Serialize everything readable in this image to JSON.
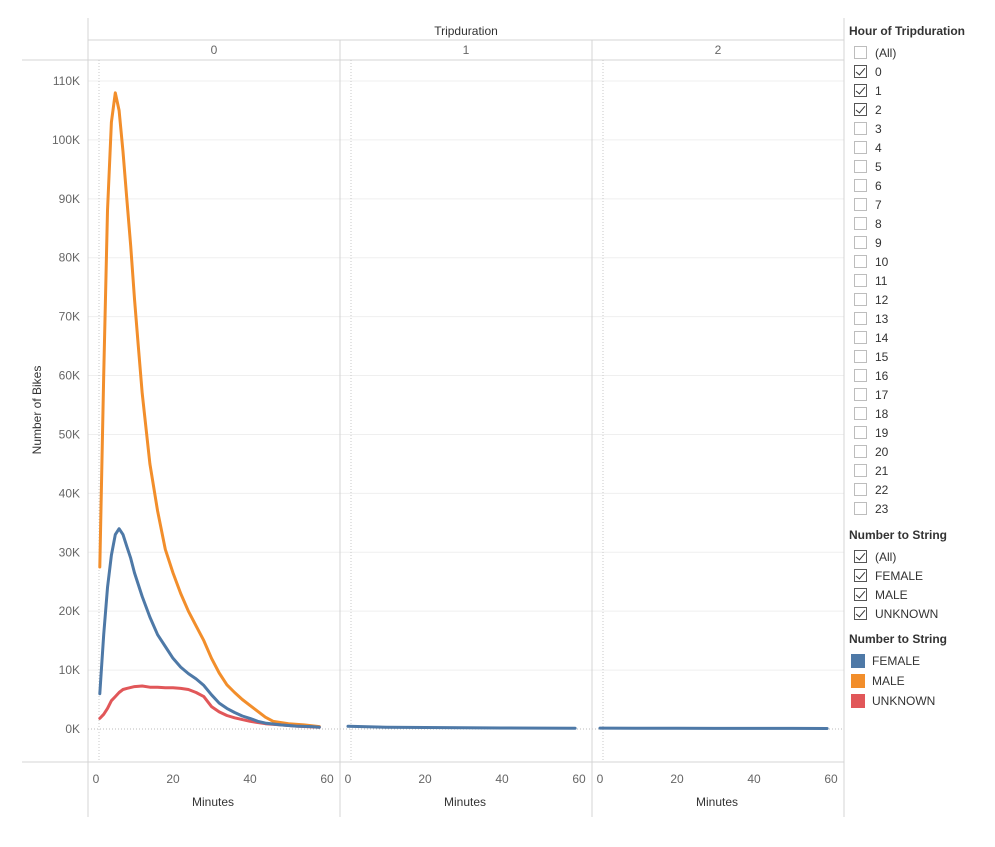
{
  "chart_data": {
    "type": "line",
    "title": "Tripduration",
    "ylabel": "Number of Bikes",
    "xlabel": "Minutes",
    "ylim": [
      0,
      110000
    ],
    "y_ticks": [
      0,
      10000,
      20000,
      30000,
      40000,
      50000,
      60000,
      70000,
      80000,
      90000,
      100000,
      110000
    ],
    "y_tick_labels": [
      "0K",
      "10K",
      "20K",
      "30K",
      "40K",
      "50K",
      "60K",
      "70K",
      "80K",
      "90K",
      "100K",
      "110K"
    ],
    "xlim": [
      0,
      60
    ],
    "x_ticks": [
      0,
      20,
      40,
      60
    ],
    "x_tick_labels": [
      "0",
      "20",
      "40",
      "60"
    ],
    "grid": true,
    "panels": [
      {
        "header": "0",
        "series": [
          {
            "name": "MALE",
            "color": "#f28e2b",
            "points": [
              [
                1,
                27500
              ],
              [
                2,
                60000
              ],
              [
                3,
                88000
              ],
              [
                4,
                103000
              ],
              [
                5,
                108000
              ],
              [
                6,
                105000
              ],
              [
                7,
                98000
              ],
              [
                8,
                90000
              ],
              [
                9,
                82000
              ],
              [
                10,
                73000
              ],
              [
                11,
                65000
              ],
              [
                12,
                57000
              ],
              [
                14,
                45000
              ],
              [
                16,
                37000
              ],
              [
                18,
                30500
              ],
              [
                20,
                26500
              ],
              [
                22,
                23000
              ],
              [
                24,
                20000
              ],
              [
                26,
                17500
              ],
              [
                28,
                15000
              ],
              [
                30,
                12000
              ],
              [
                32,
                9500
              ],
              [
                34,
                7500
              ],
              [
                36,
                6200
              ],
              [
                38,
                5000
              ],
              [
                40,
                4000
              ],
              [
                42,
                3000
              ],
              [
                44,
                2000
              ],
              [
                46,
                1300
              ],
              [
                50,
                900
              ],
              [
                54,
                700
              ],
              [
                58,
                400
              ]
            ]
          },
          {
            "name": "FEMALE",
            "color": "#4e79a7",
            "points": [
              [
                1,
                6000
              ],
              [
                2,
                16000
              ],
              [
                3,
                24000
              ],
              [
                4,
                29500
              ],
              [
                5,
                33000
              ],
              [
                6,
                34000
              ],
              [
                7,
                33000
              ],
              [
                8,
                31000
              ],
              [
                9,
                29000
              ],
              [
                10,
                26500
              ],
              [
                12,
                22500
              ],
              [
                14,
                19000
              ],
              [
                16,
                16000
              ],
              [
                18,
                14000
              ],
              [
                20,
                12000
              ],
              [
                22,
                10500
              ],
              [
                24,
                9400
              ],
              [
                26,
                8500
              ],
              [
                28,
                7400
              ],
              [
                30,
                5800
              ],
              [
                32,
                4400
              ],
              [
                34,
                3500
              ],
              [
                36,
                2800
              ],
              [
                38,
                2200
              ],
              [
                40,
                1800
              ],
              [
                42,
                1300
              ],
              [
                44,
                1000
              ],
              [
                48,
                700
              ],
              [
                52,
                500
              ],
              [
                56,
                400
              ],
              [
                58,
                300
              ]
            ]
          },
          {
            "name": "UNKNOWN",
            "color": "#e15759",
            "points": [
              [
                1,
                1800
              ],
              [
                2,
                2500
              ],
              [
                3,
                3500
              ],
              [
                4,
                4800
              ],
              [
                5,
                5500
              ],
              [
                6,
                6200
              ],
              [
                7,
                6700
              ],
              [
                8,
                6900
              ],
              [
                10,
                7200
              ],
              [
                12,
                7300
              ],
              [
                14,
                7100
              ],
              [
                16,
                7100
              ],
              [
                18,
                7000
              ],
              [
                20,
                7000
              ],
              [
                22,
                6900
              ],
              [
                24,
                6700
              ],
              [
                26,
                6200
              ],
              [
                28,
                5500
              ],
              [
                30,
                3800
              ],
              [
                32,
                2900
              ],
              [
                34,
                2300
              ],
              [
                36,
                1900
              ],
              [
                38,
                1600
              ],
              [
                40,
                1300
              ],
              [
                44,
                900
              ],
              [
                48,
                700
              ],
              [
                52,
                500
              ],
              [
                58,
                300
              ]
            ]
          }
        ]
      },
      {
        "header": "1",
        "series": [
          {
            "name": "FEMALE",
            "color": "#4e79a7",
            "points": [
              [
                0,
                450
              ],
              [
                10,
                300
              ],
              [
                20,
                250
              ],
              [
                30,
                200
              ],
              [
                40,
                170
              ],
              [
                50,
                150
              ],
              [
                59,
                120
              ]
            ]
          }
        ]
      },
      {
        "header": "2",
        "series": [
          {
            "name": "FEMALE",
            "color": "#4e79a7",
            "points": [
              [
                0,
                150
              ],
              [
                10,
                130
              ],
              [
                20,
                120
              ],
              [
                30,
                110
              ],
              [
                40,
                100
              ],
              [
                50,
                100
              ],
              [
                59,
                90
              ]
            ]
          }
        ]
      }
    ]
  },
  "filters": {
    "hour": {
      "title": "Hour of Tripduration",
      "items": [
        {
          "label": "(All)",
          "checked": false
        },
        {
          "label": "0",
          "checked": true
        },
        {
          "label": "1",
          "checked": true
        },
        {
          "label": "2",
          "checked": true
        },
        {
          "label": "3",
          "checked": false
        },
        {
          "label": "4",
          "checked": false
        },
        {
          "label": "5",
          "checked": false
        },
        {
          "label": "6",
          "checked": false
        },
        {
          "label": "7",
          "checked": false
        },
        {
          "label": "8",
          "checked": false
        },
        {
          "label": "9",
          "checked": false
        },
        {
          "label": "10",
          "checked": false
        },
        {
          "label": "11",
          "checked": false
        },
        {
          "label": "12",
          "checked": false
        },
        {
          "label": "13",
          "checked": false
        },
        {
          "label": "14",
          "checked": false
        },
        {
          "label": "15",
          "checked": false
        },
        {
          "label": "16",
          "checked": false
        },
        {
          "label": "17",
          "checked": false
        },
        {
          "label": "18",
          "checked": false
        },
        {
          "label": "19",
          "checked": false
        },
        {
          "label": "20",
          "checked": false
        },
        {
          "label": "21",
          "checked": false
        },
        {
          "label": "22",
          "checked": false
        },
        {
          "label": "23",
          "checked": false
        }
      ]
    },
    "gender": {
      "title": "Number to String",
      "items": [
        {
          "label": "(All)",
          "checked": true
        },
        {
          "label": "FEMALE",
          "checked": true
        },
        {
          "label": "MALE",
          "checked": true
        },
        {
          "label": "UNKNOWN",
          "checked": true
        }
      ]
    }
  },
  "legend": {
    "title": "Number to String",
    "items": [
      {
        "label": "FEMALE",
        "color": "#4e79a7"
      },
      {
        "label": "MALE",
        "color": "#f28e2b"
      },
      {
        "label": "UNKNOWN",
        "color": "#e15759"
      }
    ]
  }
}
